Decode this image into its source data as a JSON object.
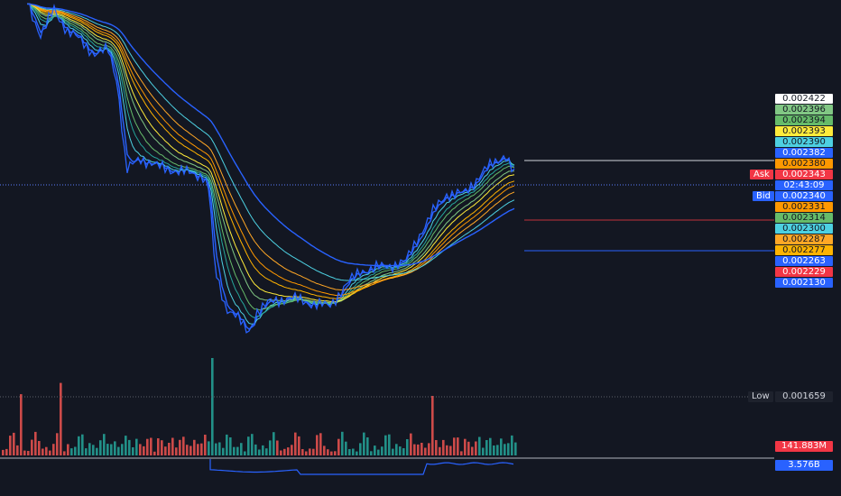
{
  "colors": {
    "background": "#131722",
    "ema_fast": "#2962ff",
    "volume_up": "#26a69a",
    "volume_down": "#ef5350",
    "ask": "#f23645",
    "bid": "#2962ff"
  },
  "price_scale": {
    "labels": [
      {
        "text": "0.002422",
        "bg": "#ffffff"
      },
      {
        "text": "0.002396",
        "bg": "#81c784"
      },
      {
        "text": "0.002394",
        "bg": "#66bb6a"
      },
      {
        "text": "0.002393",
        "bg": "#ffeb3b"
      },
      {
        "text": "0.002390",
        "bg": "#4dd0e1"
      },
      {
        "text": "0.002382",
        "bg": "#2962ff"
      },
      {
        "text": "0.002380",
        "bg": "#ff9800"
      },
      {
        "text": "0.002343",
        "bg": "#f23645"
      },
      {
        "text": "02:43:09",
        "bg": "#2962ff"
      },
      {
        "text": "0.002340",
        "bg": "#2962ff"
      },
      {
        "text": "0.002331",
        "bg": "#ff9800"
      },
      {
        "text": "0.002314",
        "bg": "#66bb6a"
      },
      {
        "text": "0.002300",
        "bg": "#4dd0e1"
      },
      {
        "text": "0.002287",
        "bg": "#ffa726"
      },
      {
        "text": "0.002277",
        "bg": "#ffb300"
      },
      {
        "text": "0.002263",
        "bg": "#2962ff"
      },
      {
        "text": "0.002229",
        "bg": "#f23645"
      },
      {
        "text": "0.002130",
        "bg": "#2962ff"
      }
    ],
    "ask_label": "Ask",
    "bid_label": "Bid",
    "low_label": "Low",
    "low_value": "0.001659",
    "volume_value": "141.883M",
    "indicator_value": "3.576B"
  }
}
